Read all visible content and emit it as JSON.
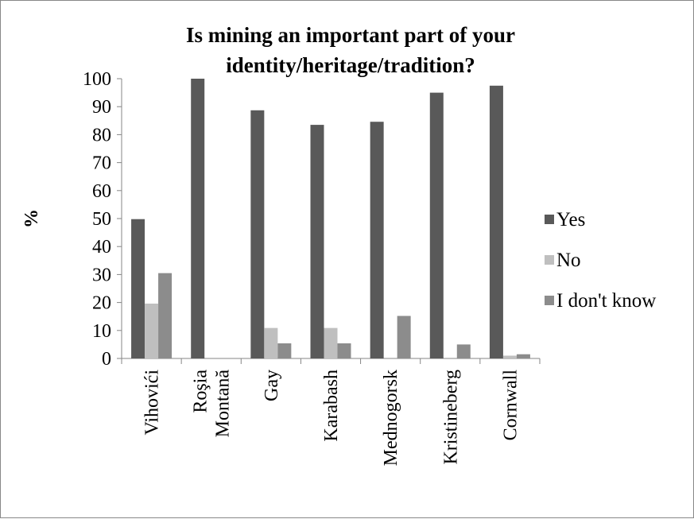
{
  "chart_data": {
    "type": "bar",
    "title_lines": [
      "Is mining an important part of your",
      "identity/heritage/tradition?"
    ],
    "ylabel": "%",
    "xlabel": "",
    "ylim": [
      0,
      100
    ],
    "yticks": [
      0,
      10,
      20,
      30,
      40,
      50,
      60,
      70,
      80,
      90,
      100
    ],
    "categories": [
      [
        "Vihovići"
      ],
      [
        "Roşia",
        "Montană"
      ],
      [
        "Gay"
      ],
      [
        "Karabash"
      ],
      [
        "Mednogorsk"
      ],
      [
        "Kristineberg"
      ],
      [
        "Cornwall"
      ]
    ],
    "series": [
      {
        "name": "Yes",
        "color": "#595959",
        "values": [
          49.8,
          100,
          88.7,
          83.5,
          84.6,
          95,
          97.5
        ]
      },
      {
        "name": "No",
        "color": "#bfbfbf",
        "values": [
          19.6,
          0,
          10.9,
          10.9,
          0,
          0,
          1.0
        ]
      },
      {
        "name": "I don't know",
        "color": "#8c8c8c",
        "values": [
          30.5,
          0,
          5.4,
          5.4,
          15.2,
          5.0,
          1.5
        ]
      }
    ],
    "legend_position": "right",
    "grid": false
  }
}
